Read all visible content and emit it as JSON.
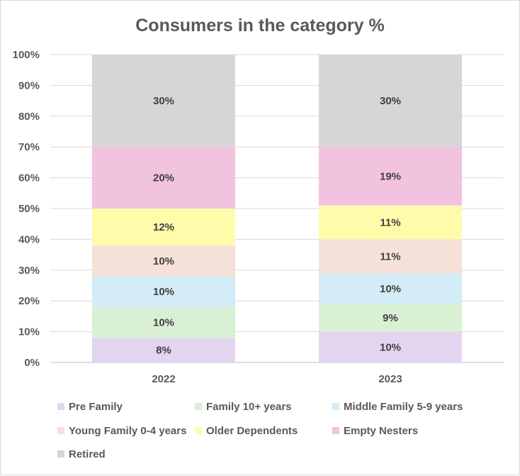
{
  "chart_data": {
    "type": "bar",
    "stacked": true,
    "title": "Consumers in the category %",
    "categories": [
      "2022",
      "2023"
    ],
    "ylim": [
      0,
      100
    ],
    "ytick_labels": [
      "0%",
      "10%",
      "20%",
      "30%",
      "40%",
      "50%",
      "60%",
      "70%",
      "80%",
      "90%",
      "100%"
    ],
    "grid": true,
    "legend_position": "bottom",
    "series": [
      {
        "name": "Pre Family",
        "color": "#e3d4f0",
        "values": [
          8,
          10
        ],
        "labels": [
          "8%",
          "10%"
        ]
      },
      {
        "name": "Family 10+ years",
        "color": "#daf0d4",
        "values": [
          10,
          9
        ],
        "labels": [
          "10%",
          "9%"
        ]
      },
      {
        "name": "Middle Family 5-9 years",
        "color": "#d4ecf8",
        "values": [
          10,
          10
        ],
        "labels": [
          "10%",
          "10%"
        ]
      },
      {
        "name": "Young Family 0-4 years",
        "color": "#f6e1d9",
        "values": [
          10,
          11
        ],
        "labels": [
          "10%",
          "11%"
        ]
      },
      {
        "name": "Older Dependents",
        "color": "#fefcaa",
        "values": [
          12,
          11
        ],
        "labels": [
          "12%",
          "11%"
        ]
      },
      {
        "name": "Empty Nesters",
        "color": "#f1c3df",
        "values": [
          20,
          19
        ],
        "labels": [
          "20%",
          "19%"
        ]
      },
      {
        "name": "Retired",
        "color": "#d6d6d6",
        "values": [
          30,
          30
        ],
        "labels": [
          "30%",
          "30%"
        ]
      }
    ]
  }
}
